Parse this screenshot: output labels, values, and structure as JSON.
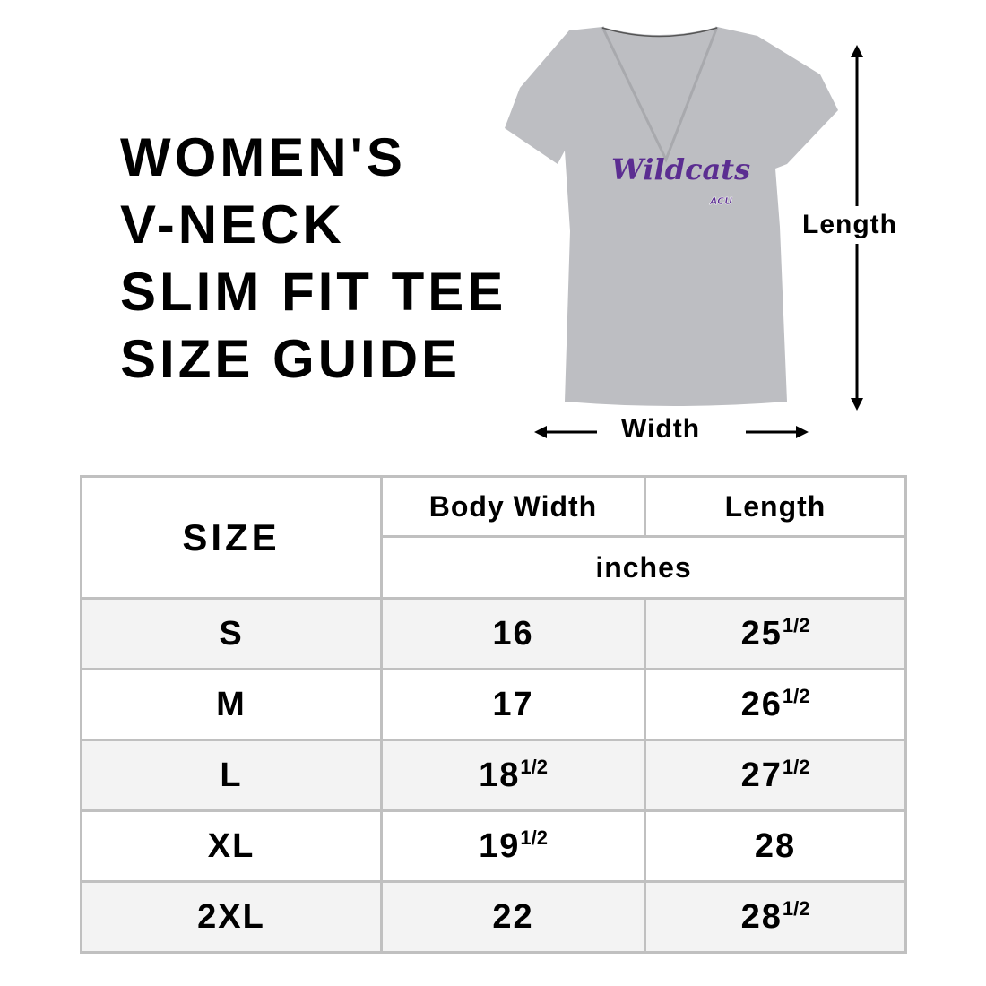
{
  "title": {
    "lines": [
      "WOMEN'S",
      "V-NECK",
      "SLIM FIT TEE",
      "SIZE GUIDE"
    ]
  },
  "diagram": {
    "length_label": "Length",
    "width_label": "Width",
    "shirt_print": "Wildcats",
    "shirt_logo": "ACU",
    "shirt_color": "#bdbec2",
    "print_color": "#5b2d91"
  },
  "table": {
    "size_header": "SIZE",
    "headers": [
      "Body Width",
      "Length"
    ],
    "unit": "inches",
    "rows": [
      {
        "size": "S",
        "width": "16",
        "width_frac": "",
        "length": "25",
        "length_frac": "1/2"
      },
      {
        "size": "M",
        "width": "17",
        "width_frac": "",
        "length": "26",
        "length_frac": "1/2"
      },
      {
        "size": "L",
        "width": "18",
        "width_frac": "1/2",
        "length": "27",
        "length_frac": "1/2"
      },
      {
        "size": "XL",
        "width": "19",
        "width_frac": "1/2",
        "length": "28",
        "length_frac": ""
      },
      {
        "size": "2XL",
        "width": "22",
        "width_frac": "",
        "length": "28",
        "length_frac": "1/2"
      }
    ]
  }
}
